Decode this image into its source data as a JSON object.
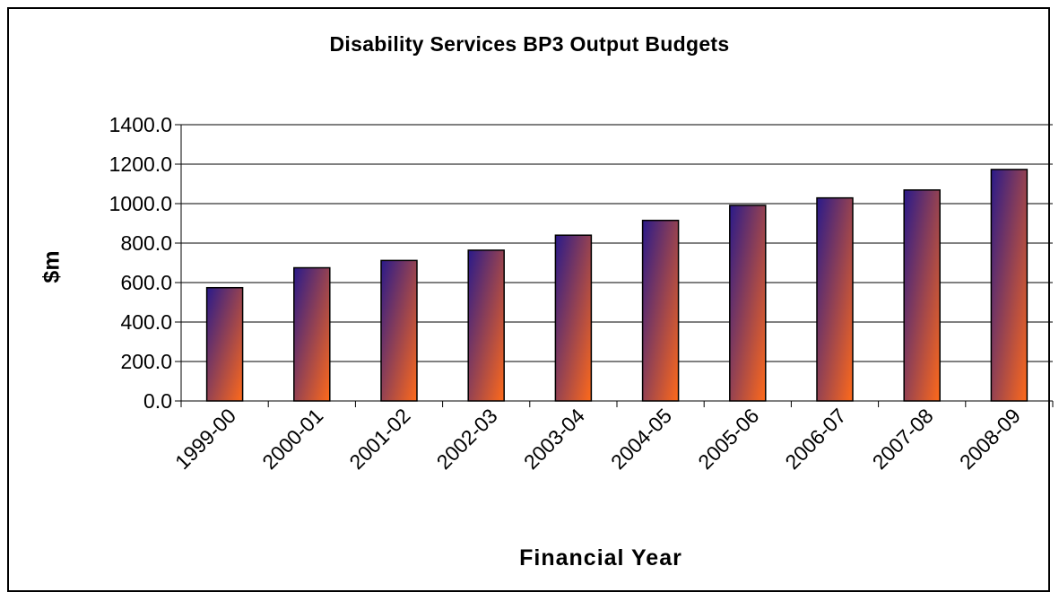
{
  "chart_data": {
    "type": "bar",
    "title": "Disability Services BP3 Output Budgets",
    "xlabel": "Financial Year",
    "ylabel": "$m",
    "categories": [
      "1999-00",
      "2000-01",
      "2001-02",
      "2002-03",
      "2003-04",
      "2004-05",
      "2005-06",
      "2006-07",
      "2007-08",
      "2008-09"
    ],
    "values": [
      574,
      675,
      712,
      764,
      840,
      915,
      991,
      1029,
      1069,
      1173
    ],
    "ylim": [
      0,
      1400
    ],
    "yticks": [
      "0.0",
      "200.0",
      "400.0",
      "600.0",
      "800.0",
      "1000.0",
      "1200.0",
      "1400.0"
    ],
    "grid": true,
    "legend": "none",
    "colors": {
      "bar_top": "#2a1a8a",
      "bar_bottom": "#ff6a1a",
      "gridline": "#000000",
      "border": "#000000"
    }
  }
}
